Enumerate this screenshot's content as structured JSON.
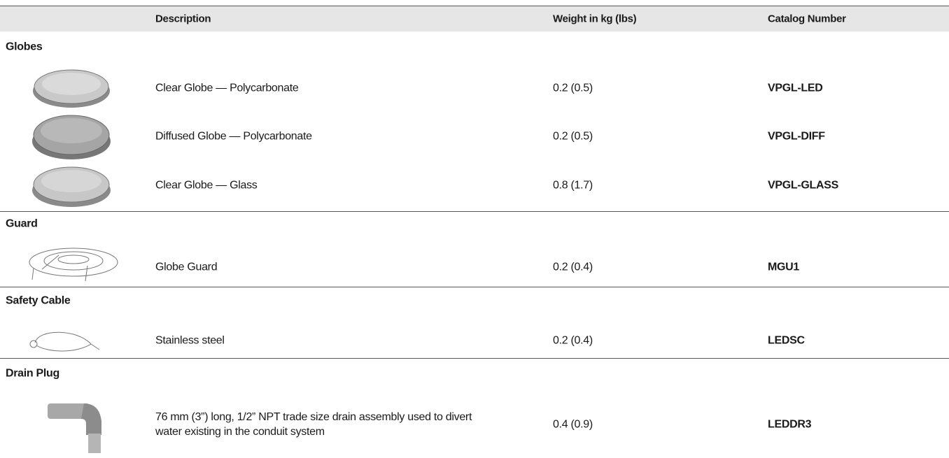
{
  "header": {
    "columns": [
      "Description",
      "Weight in kg (lbs)",
      "Catalog Number"
    ]
  },
  "sections": [
    {
      "title": "Globes",
      "items": [
        {
          "description": "Clear Globe — Polycarbonate",
          "weight": "0.2 (0.5)",
          "catalog": "VPGL-LED"
        },
        {
          "description": "Diffused Globe — Polycarbonate",
          "weight": "0.2 (0.5)",
          "catalog": "VPGL-DIFF"
        },
        {
          "description": "Clear Globe — Glass",
          "weight": "0.8 (1.7)",
          "catalog": "VPGL-GLASS"
        }
      ]
    },
    {
      "title": "Guard",
      "items": [
        {
          "description": "Globe Guard",
          "weight": "0.2 (0.4)",
          "catalog": "MGU1"
        }
      ]
    },
    {
      "title": "Safety Cable",
      "items": [
        {
          "description": "Stainless steel",
          "weight": "0.2 (0.4)",
          "catalog": "LEDSC"
        }
      ]
    },
    {
      "title": "Drain Plug",
      "items": [
        {
          "description": "76 mm (3”) long, 1/2” NPT trade size drain assembly used to divert water existing in the conduit system",
          "weight": "0.4 (0.9)",
          "catalog": "LEDDR3"
        }
      ]
    }
  ]
}
